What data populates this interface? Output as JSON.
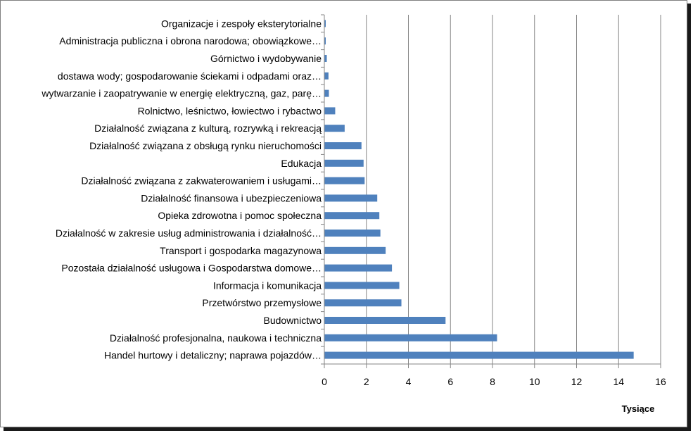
{
  "chart_data": {
    "type": "bar",
    "orientation": "horizontal",
    "categories": [
      "Handel hurtowy i detaliczny; naprawa pojazdów…",
      "Działalność profesjonalna, naukowa i techniczna",
      "Budownictwo",
      "Przetwórstwo przemysłowe",
      "Informacja i komunikacja",
      "Pozostała działalność usługowa i  Gospodarstwa domowe…",
      "Transport i gospodarka magazynowa",
      "Działalność w zakresie usług administrowania i działalność…",
      "Opieka zdrowotna i pomoc społeczna",
      "Działalność finansowa i ubezpieczeniowa",
      "Działalność związana z zakwaterowaniem i usługami…",
      "Edukacja",
      "Działalność związana z obsługą rynku nieruchomości",
      "Działalność związana z kulturą, rozrywką i rekreacją",
      "Rolnictwo, leśnictwo, łowiectwo i rybactwo",
      "wytwarzanie i zaopatrywanie w energię elektryczną, gaz, parę…",
      "dostawa wody; gospodarowanie ściekami i odpadami oraz…",
      "Górnictwo i wydobywanie",
      "Administracja publiczna i obrona narodowa; obowiązkowe…",
      "Organizacje i zespoły eksterytorialne"
    ],
    "values": [
      14.7,
      8.2,
      5.75,
      3.65,
      3.55,
      3.2,
      2.9,
      2.65,
      2.6,
      2.5,
      1.9,
      1.85,
      1.75,
      0.95,
      0.5,
      0.2,
      0.18,
      0.1,
      0.03,
      0.02
    ],
    "xlim": [
      0,
      16
    ],
    "xticks": [
      "0",
      "2",
      "4",
      "6",
      "8",
      "10",
      "12",
      "14",
      "16"
    ],
    "xlabel": "Tysiące",
    "grid": true,
    "bar_color": "#4f81bd",
    "grid_color": "#868686"
  }
}
